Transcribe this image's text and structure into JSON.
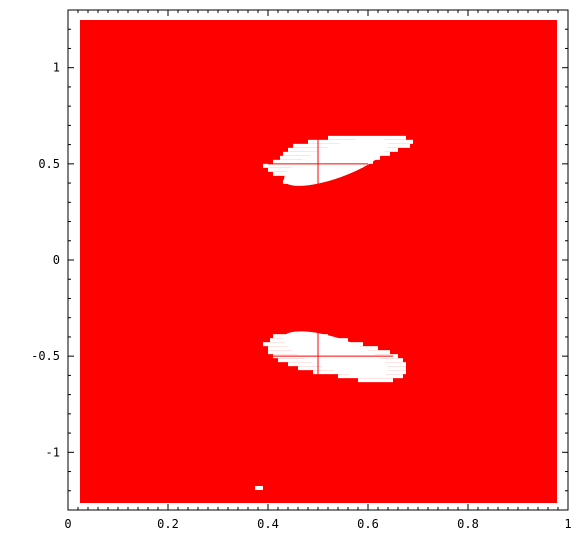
{
  "chart_data": {
    "type": "heatmap",
    "title": "",
    "xlabel": "",
    "ylabel": "",
    "xlim": [
      0,
      1
    ],
    "ylim": [
      -1.3,
      1.3
    ],
    "x_ticks": [
      0,
      0.2,
      0.4,
      0.6,
      0.8,
      1
    ],
    "x_tick_labels": [
      "0",
      "0.2",
      "0.4",
      "0.6",
      "0.8",
      "1"
    ],
    "y_ticks": [
      1,
      0.5,
      0,
      -0.5,
      -1
    ],
    "y_tick_labels": [
      "1",
      "0.5",
      "0",
      "-0.5",
      "-1"
    ],
    "region": {
      "x": [
        0,
        1
      ],
      "y": [
        -1.3,
        1.3
      ],
      "fill_color": "#ff0000"
    },
    "background_color": "#ffffff",
    "grid": false,
    "holes": [
      {
        "center": [
          0.5,
          0.5
        ],
        "x_range": [
          0.38,
          0.68
        ],
        "y_range": [
          0.35,
          0.63
        ],
        "fill_color": "#ffffff"
      },
      {
        "center": [
          0.5,
          -0.5
        ],
        "x_range": [
          0.38,
          0.68
        ],
        "y_range": [
          -0.67,
          -0.37
        ],
        "fill_color": "#ffffff"
      }
    ],
    "crosshairs": [
      {
        "x": 0.5,
        "y": 0.5,
        "half_width": 0.1,
        "half_height": 0.2
      },
      {
        "x": 0.5,
        "y": -0.5,
        "half_width": 0.15,
        "half_height": 0.2
      }
    ]
  }
}
